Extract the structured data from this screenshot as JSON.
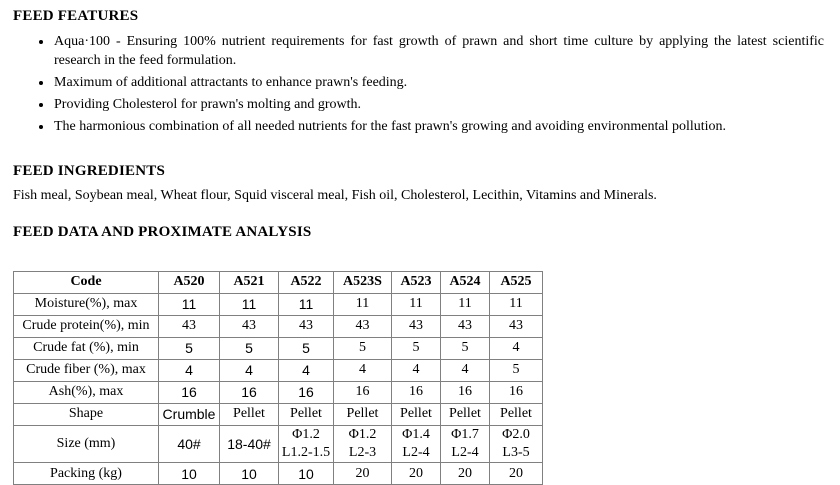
{
  "features": {
    "heading": "FEED FEATURES",
    "bullets": [
      "Aqua·100 - Ensuring 100% nutrient requirements for fast growth of prawn and short time culture by applying the latest scientific research in the feed formulation.",
      "Maximum of additional attractants to enhance prawn's feeding.",
      "Providing Cholesterol for prawn's molting and growth.",
      "The harmonious combination of all needed nutrients for the fast prawn's growing and avoiding environmental pollution."
    ]
  },
  "ingredients": {
    "heading": "FEED INGREDIENTS",
    "text": "Fish meal, Soybean meal, Wheat flour, Squid visceral meal, Fish oil, Cholesterol, Lecithin, Vitamins and Minerals."
  },
  "analysis": {
    "heading": "FEED DATA AND PROXIMATE ANALYSIS"
  },
  "table": {
    "columns": [
      "Code",
      "A520",
      "A521",
      "A522",
      "A523S",
      "A523",
      "A524",
      "A525"
    ],
    "rows": [
      {
        "label": "Moisture(%), max",
        "values": [
          "11",
          "11",
          "11",
          "11",
          "11",
          "11",
          "11"
        ]
      },
      {
        "label": "Crude protein(%), min",
        "values": [
          "43",
          "43",
          "43",
          "43",
          "43",
          "43",
          "43"
        ]
      },
      {
        "label": "Crude fat (%), min",
        "values": [
          "5",
          "5",
          "5",
          "5",
          "5",
          "5",
          "4"
        ]
      },
      {
        "label": "Crude fiber (%), max",
        "values": [
          "4",
          "4",
          "4",
          "4",
          "4",
          "4",
          "5"
        ]
      },
      {
        "label": "Ash(%), max",
        "values": [
          "16",
          "16",
          "16",
          "16",
          "16",
          "16",
          "16"
        ]
      },
      {
        "label": "Shape",
        "values": [
          "Crumble",
          "Pellet",
          "Pellet",
          "Pellet",
          "Pellet",
          "Pellet",
          "Pellet"
        ]
      },
      {
        "label": "Size (mm)",
        "values": [
          "40#",
          "18-40#",
          "Φ1.2\nL1.2-1.5",
          "Φ1.2\nL2-3",
          "Φ1.4\nL2-4",
          "Φ1.7\nL2-4",
          "Φ2.0\nL3-5"
        ]
      },
      {
        "label": "Packing (kg)",
        "values": [
          "10",
          "10",
          "10",
          "20",
          "20",
          "20",
          "20"
        ]
      }
    ]
  }
}
